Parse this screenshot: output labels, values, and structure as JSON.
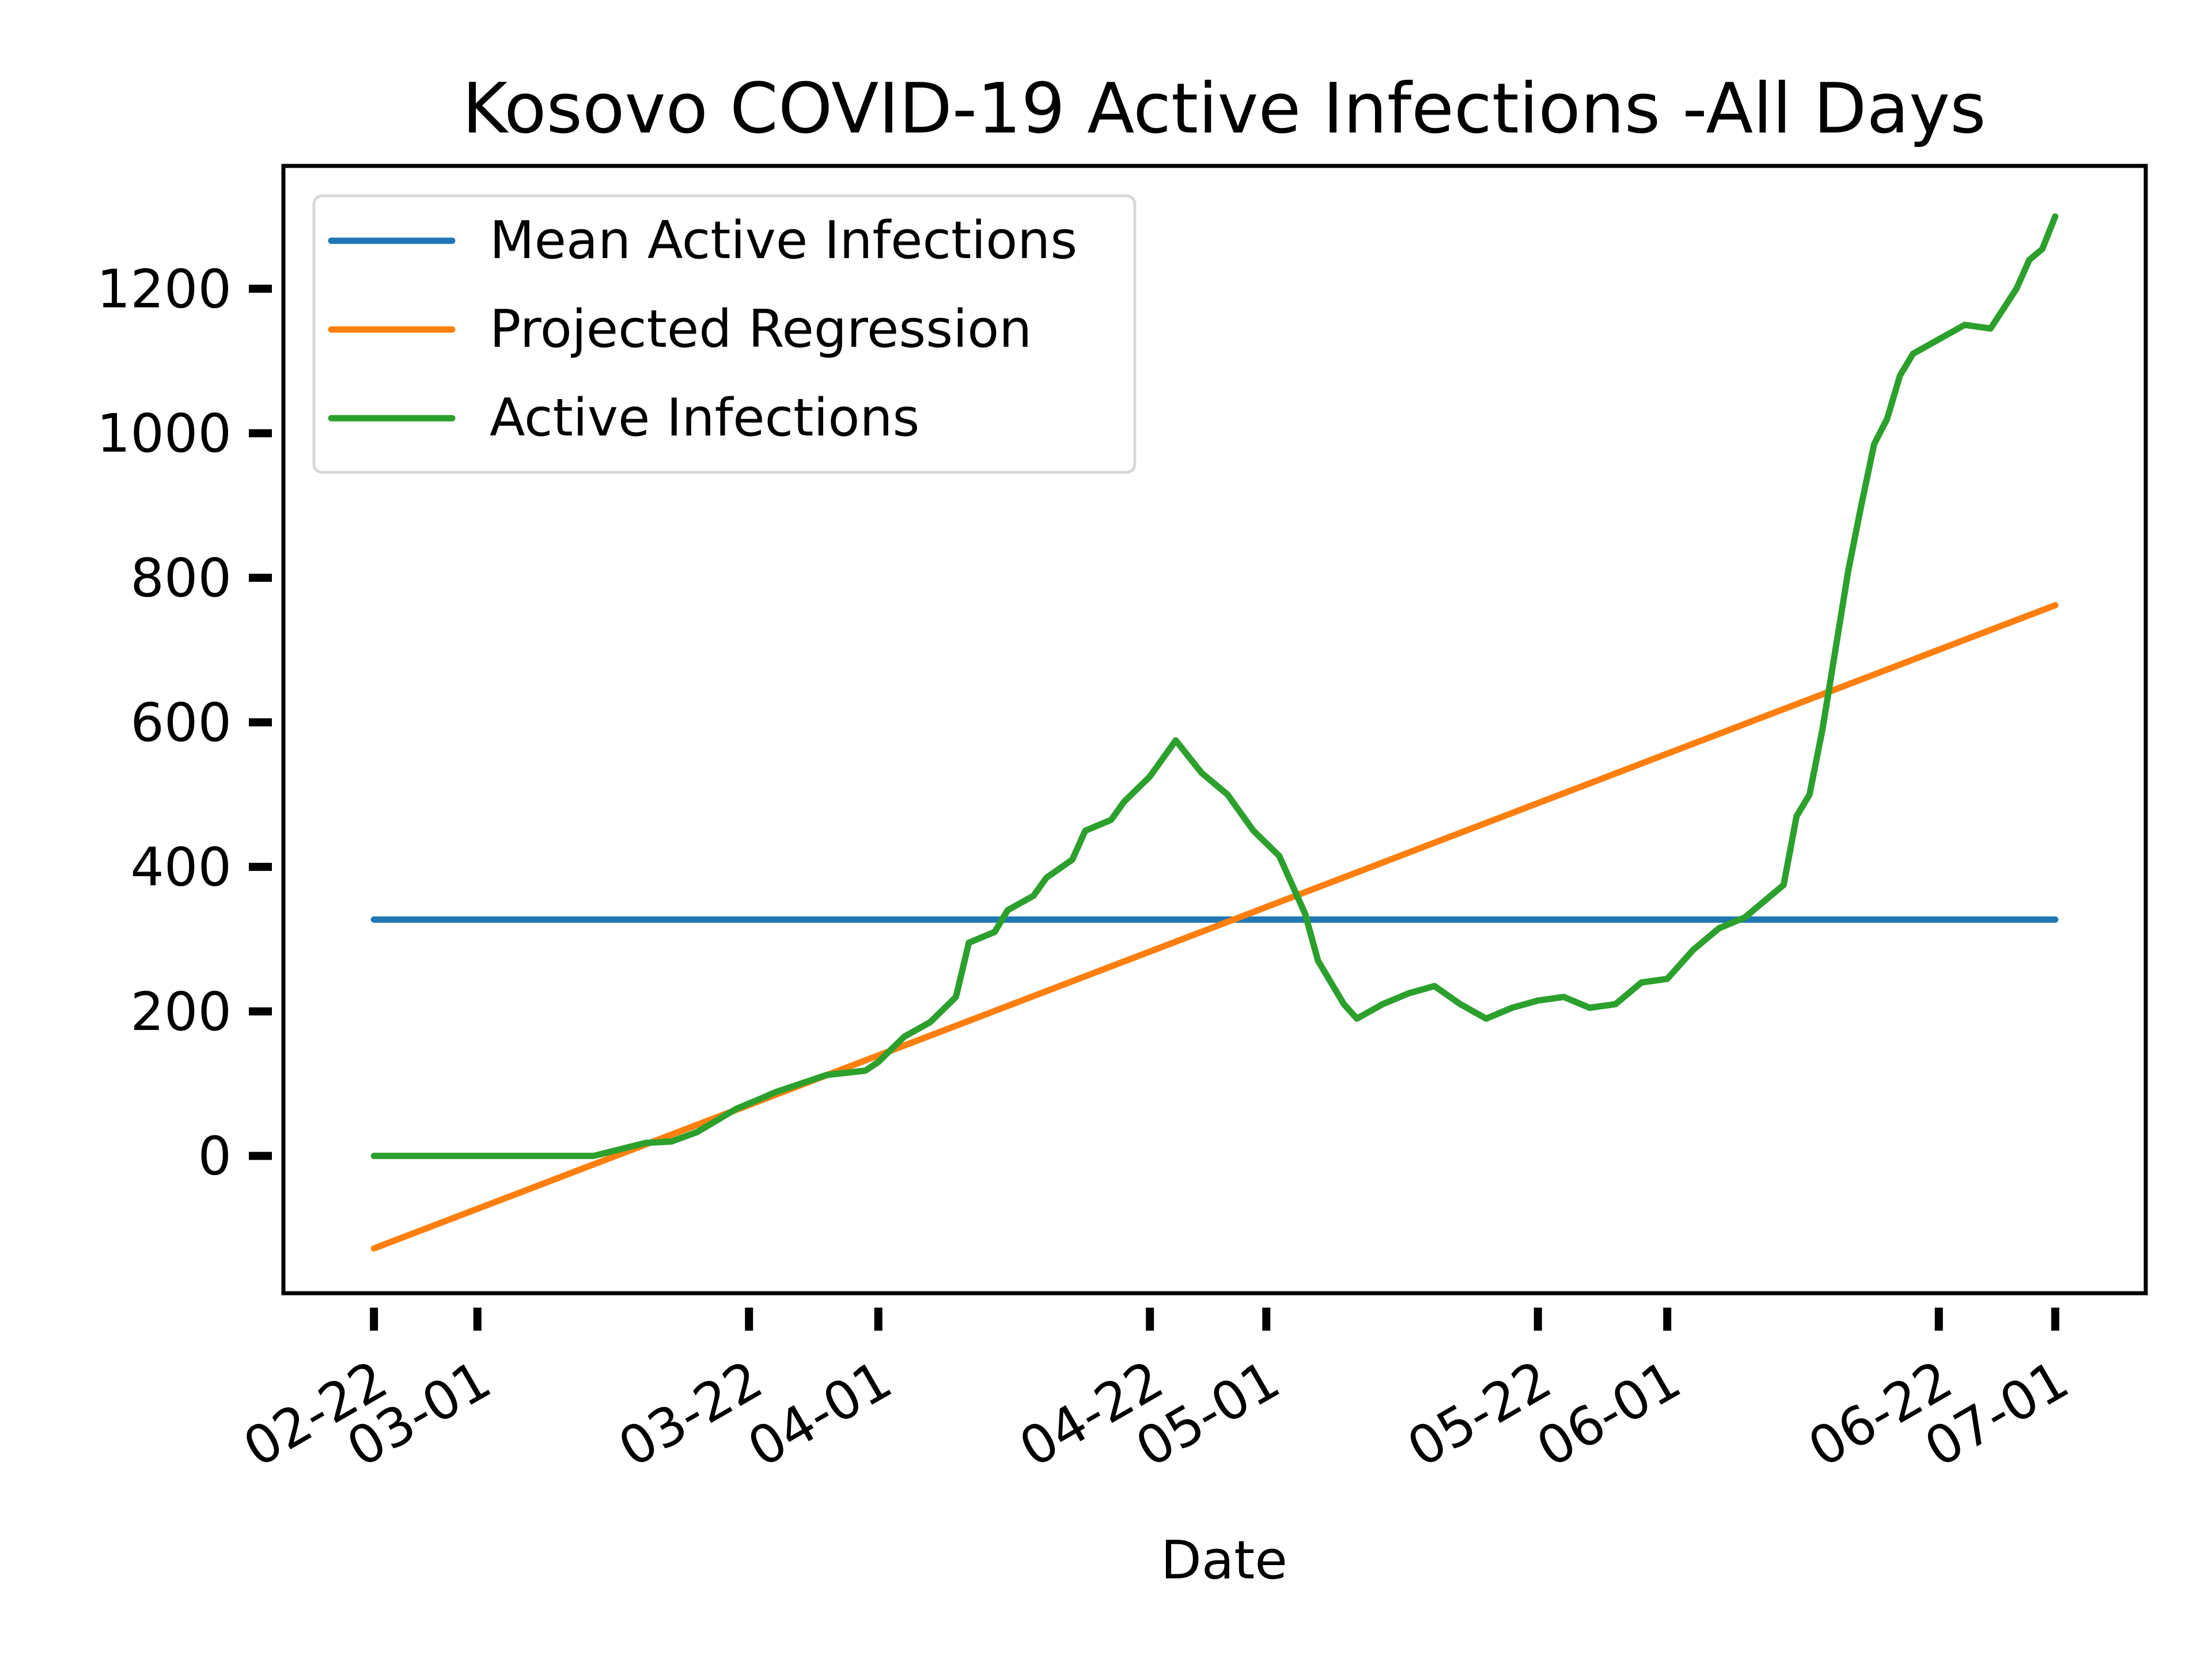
{
  "chart_data": {
    "type": "line",
    "title": "Kosovo COVID-19 Active Infections -All Days",
    "xlabel": "Date",
    "ylabel": "",
    "xlim": [
      "2020-02-15",
      "2020-07-08"
    ],
    "ylim": [
      -190,
      1370
    ],
    "yticks": [
      0,
      200,
      400,
      600,
      800,
      1000,
      1200
    ],
    "xticks": [
      {
        "date": "2020-02-22",
        "label": "02-22"
      },
      {
        "date": "2020-03-01",
        "label": "03-01"
      },
      {
        "date": "2020-03-22",
        "label": "03-22"
      },
      {
        "date": "2020-04-01",
        "label": "04-01"
      },
      {
        "date": "2020-04-22",
        "label": "04-22"
      },
      {
        "date": "2020-05-01",
        "label": "05-01"
      },
      {
        "date": "2020-05-22",
        "label": "05-22"
      },
      {
        "date": "2020-06-01",
        "label": "06-01"
      },
      {
        "date": "2020-06-22",
        "label": "06-22"
      },
      {
        "date": "2020-07-01",
        "label": "07-01"
      }
    ],
    "grid": false,
    "legend_position": "upper-left",
    "series": [
      {
        "name": "Mean Active Infections",
        "color": "#1f77b4",
        "x": [
          "2020-02-22",
          "2020-07-01"
        ],
        "y": [
          327,
          327
        ]
      },
      {
        "name": "Projected Regression",
        "color": "#ff7f0e",
        "x": [
          "2020-02-22",
          "2020-07-01"
        ],
        "y": [
          -128,
          762
        ]
      },
      {
        "name": "Active Infections",
        "color": "#2ca02c",
        "x": [
          "2020-02-22",
          "2020-03-01",
          "2020-03-10",
          "2020-03-14",
          "2020-03-16",
          "2020-03-18",
          "2020-03-21",
          "2020-03-23",
          "2020-03-24",
          "2020-03-26",
          "2020-03-28",
          "2020-03-31",
          "2020-04-01",
          "2020-04-03",
          "2020-04-05",
          "2020-04-07",
          "2020-04-08",
          "2020-04-10",
          "2020-04-11",
          "2020-04-13",
          "2020-04-14",
          "2020-04-16",
          "2020-04-17",
          "2020-04-19",
          "2020-04-20",
          "2020-04-22",
          "2020-04-24",
          "2020-04-26",
          "2020-04-28",
          "2020-04-30",
          "2020-05-02",
          "2020-05-04",
          "2020-05-05",
          "2020-05-07",
          "2020-05-08",
          "2020-05-10",
          "2020-05-12",
          "2020-05-14",
          "2020-05-16",
          "2020-05-18",
          "2020-05-20",
          "2020-05-22",
          "2020-05-24",
          "2020-05-26",
          "2020-05-28",
          "2020-05-30",
          "2020-06-01",
          "2020-06-03",
          "2020-06-05",
          "2020-06-07",
          "2020-06-09",
          "2020-06-10",
          "2020-06-11",
          "2020-06-12",
          "2020-06-13",
          "2020-06-14",
          "2020-06-15",
          "2020-06-16",
          "2020-06-17",
          "2020-06-18",
          "2020-06-19",
          "2020-06-20",
          "2020-06-22",
          "2020-06-24",
          "2020-06-26",
          "2020-06-28",
          "2020-06-29",
          "2020-06-30",
          "2020-07-01"
        ],
        "y": [
          0,
          0,
          0,
          18,
          20,
          33,
          65,
          80,
          88,
          100,
          112,
          118,
          130,
          165,
          185,
          220,
          295,
          310,
          340,
          360,
          385,
          410,
          450,
          465,
          490,
          525,
          575,
          530,
          500,
          450,
          415,
          335,
          270,
          210,
          190,
          210,
          225,
          235,
          210,
          190,
          205,
          215,
          220,
          205,
          210,
          240,
          245,
          285,
          315,
          330,
          360,
          375,
          470,
          500,
          590,
          700,
          810,
          900,
          985,
          1020,
          1080,
          1110,
          1130,
          1150,
          1145,
          1200,
          1240,
          1255,
          1300
        ]
      }
    ]
  }
}
